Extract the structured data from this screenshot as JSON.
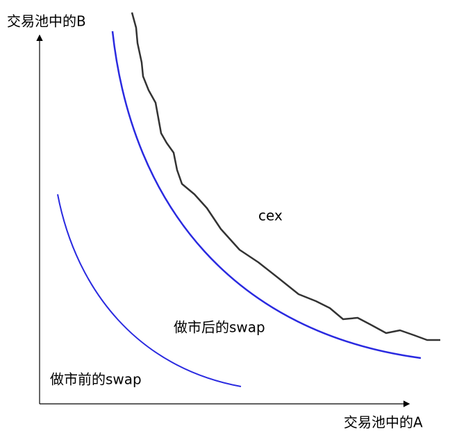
{
  "y_axis_label": "交易池中的B",
  "x_axis_label": "交易池中的A",
  "curves": [
    {
      "label": "cex"
    },
    {
      "label": "做市后的swap"
    },
    {
      "label": "做市前的swap"
    }
  ]
}
